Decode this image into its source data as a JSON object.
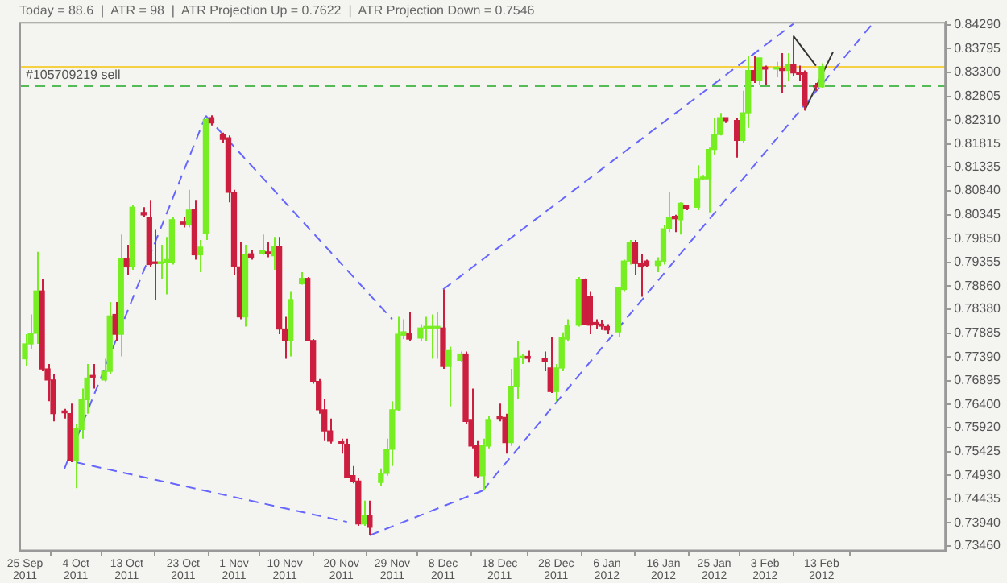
{
  "chart_data": {
    "type": "candlestick",
    "title": "Today = 88.6  |  ATR = 98  |  ATR Projection Up = 0.7622  |  ATR Projection Down = 0.7546",
    "x": [
      "2011-09-25",
      "2011-09-26",
      "2011-09-27",
      "2011-09-28",
      "2011-09-29",
      "2011-09-30",
      "2011-10-02",
      "2011-10-03",
      "2011-10-04",
      "2011-10-05",
      "2011-10-06",
      "2011-10-07",
      "2011-10-09",
      "2011-10-10",
      "2011-10-11",
      "2011-10-12",
      "2011-10-13",
      "2011-10-14",
      "2011-10-16",
      "2011-10-17",
      "2011-10-18",
      "2011-10-19",
      "2011-10-20",
      "2011-10-21",
      "2011-10-23",
      "2011-10-24",
      "2011-10-25",
      "2011-10-26",
      "2011-10-27",
      "2011-10-28",
      "2011-10-30",
      "2011-10-31",
      "2011-11-01",
      "2011-11-02",
      "2011-11-03",
      "2011-11-04",
      "2011-11-06",
      "2011-11-07",
      "2011-11-08",
      "2011-11-09",
      "2011-11-10",
      "2011-11-11",
      "2011-11-13",
      "2011-11-14",
      "2011-11-15",
      "2011-11-16",
      "2011-11-17",
      "2011-11-18",
      "2011-11-20",
      "2011-11-21",
      "2011-11-22",
      "2011-11-23",
      "2011-11-24",
      "2011-11-25",
      "2011-11-27",
      "2011-11-28",
      "2011-11-29",
      "2011-11-30",
      "2011-12-01",
      "2011-12-02",
      "2011-12-04",
      "2011-12-05",
      "2011-12-06",
      "2011-12-07",
      "2011-12-08",
      "2011-12-09",
      "2011-12-11",
      "2011-12-12",
      "2011-12-13",
      "2011-12-14",
      "2011-12-15",
      "2011-12-16",
      "2011-12-18",
      "2011-12-19",
      "2011-12-20",
      "2011-12-21",
      "2011-12-22",
      "2011-12-23",
      "2011-12-26",
      "2011-12-27",
      "2011-12-28",
      "2011-12-29",
      "2011-12-30",
      "2012-01-01",
      "2012-01-02",
      "2012-01-03",
      "2012-01-04",
      "2012-01-05",
      "2012-01-06",
      "2012-01-08",
      "2012-01-09",
      "2012-01-10",
      "2012-01-11",
      "2012-01-12",
      "2012-01-13",
      "2012-01-15",
      "2012-01-16",
      "2012-01-17",
      "2012-01-18",
      "2012-01-19",
      "2012-01-20",
      "2012-01-22",
      "2012-01-23",
      "2012-01-24",
      "2012-01-25",
      "2012-01-26",
      "2012-01-27",
      "2012-01-29",
      "2012-01-30",
      "2012-01-31",
      "2012-02-01",
      "2012-02-02",
      "2012-02-03",
      "2012-02-05",
      "2012-02-06",
      "2012-02-07",
      "2012-02-08",
      "2012-02-09",
      "2012-02-10",
      "2012-02-12",
      "2012-02-13"
    ],
    "ohlc": [
      [
        0.7735,
        0.7786,
        0.7719,
        0.7766
      ],
      [
        0.7766,
        0.7827,
        0.7755,
        0.7788
      ],
      [
        0.7788,
        0.7957,
        0.7766,
        0.7876
      ],
      [
        0.7876,
        0.79,
        0.7709,
        0.7714
      ],
      [
        0.7714,
        0.7724,
        0.7647,
        0.7691
      ],
      [
        0.7691,
        0.7704,
        0.7605,
        0.7621
      ],
      [
        0.7626,
        0.7631,
        0.7611,
        0.7623
      ],
      [
        0.7621,
        0.7642,
        0.752,
        0.7523
      ],
      [
        0.7523,
        0.76,
        0.7466,
        0.759
      ],
      [
        0.7588,
        0.7673,
        0.7569,
        0.765
      ],
      [
        0.765,
        0.7724,
        0.7621,
        0.7695
      ],
      [
        0.7698,
        0.7724,
        0.7673,
        0.7697
      ],
      [
        0.7691,
        0.7735,
        0.7688,
        0.7709
      ],
      [
        0.7709,
        0.7853,
        0.7704,
        0.7824
      ],
      [
        0.7827,
        0.7853,
        0.7771,
        0.7786
      ],
      [
        0.7786,
        0.7993,
        0.774,
        0.7943
      ],
      [
        0.7943,
        0.7972,
        0.791,
        0.7926
      ],
      [
        0.7926,
        0.8055,
        0.792,
        0.805
      ],
      [
        0.8039,
        0.805,
        0.8029,
        0.8034
      ],
      [
        0.8029,
        0.8065,
        0.7926,
        0.7931
      ],
      [
        0.7936,
        0.8003,
        0.7858,
        0.7933
      ],
      [
        0.7933,
        0.7972,
        0.79,
        0.7936
      ],
      [
        0.7936,
        0.7988,
        0.7869,
        0.7941
      ],
      [
        0.7936,
        0.8029,
        0.7931,
        0.8024
      ],
      [
        0.8019,
        0.8029,
        0.8008,
        0.8015
      ],
      [
        0.8013,
        0.8086,
        0.8008,
        0.8044
      ],
      [
        0.8046,
        0.8065,
        0.7941,
        0.7951
      ],
      [
        0.7951,
        0.7982,
        0.7915,
        0.7967
      ],
      [
        0.7995,
        0.8236,
        0.7982,
        0.8232
      ],
      [
        0.8236,
        0.8241,
        0.822,
        0.8225
      ],
      [
        0.8201,
        0.8205,
        0.8184,
        0.8191
      ],
      [
        0.8194,
        0.8199,
        0.806,
        0.8081
      ],
      [
        0.8081,
        0.8086,
        0.791,
        0.7926
      ],
      [
        0.7926,
        0.7977,
        0.7817,
        0.7822
      ],
      [
        0.7822,
        0.7972,
        0.7802,
        0.7951
      ],
      [
        0.7953,
        0.7962,
        0.7941,
        0.7946
      ],
      [
        0.7953,
        0.7993,
        0.7951,
        0.7959
      ],
      [
        0.7957,
        0.7977,
        0.7946,
        0.7953
      ],
      [
        0.7949,
        0.7988,
        0.792,
        0.7969
      ],
      [
        0.7969,
        0.7988,
        0.7786,
        0.7797
      ],
      [
        0.7797,
        0.7822,
        0.7735,
        0.7773
      ],
      [
        0.7773,
        0.7874,
        0.774,
        0.7858
      ],
      [
        0.7891,
        0.7915,
        0.7889,
        0.7902
      ],
      [
        0.7902,
        0.7905,
        0.7771,
        0.7773
      ],
      [
        0.7773,
        0.7776,
        0.7683,
        0.7688
      ],
      [
        0.7688,
        0.7693,
        0.7621,
        0.7629
      ],
      [
        0.7629,
        0.7652,
        0.7564,
        0.7585
      ],
      [
        0.7585,
        0.7611,
        0.7559,
        0.7564
      ],
      [
        0.7561,
        0.7569,
        0.7538,
        0.7559
      ],
      [
        0.7556,
        0.7569,
        0.7487,
        0.7489
      ],
      [
        0.7492,
        0.7512,
        0.7476,
        0.7481
      ],
      [
        0.7481,
        0.7487,
        0.7388,
        0.7392
      ],
      [
        0.7392,
        0.744,
        0.7388,
        0.7409
      ],
      [
        0.7409,
        0.744,
        0.7368,
        0.7385
      ],
      [
        0.7478,
        0.7507,
        0.7471,
        0.7497
      ],
      [
        0.7497,
        0.7569,
        0.7492,
        0.7547
      ],
      [
        0.7547,
        0.7647,
        0.7512,
        0.7629
      ],
      [
        0.7629,
        0.7822,
        0.7626,
        0.7786
      ],
      [
        0.7784,
        0.7817,
        0.7776,
        0.7791
      ],
      [
        0.7788,
        0.7833,
        0.7771,
        0.7776
      ],
      [
        0.7778,
        0.7807,
        0.7771,
        0.7799
      ],
      [
        0.7799,
        0.7822,
        0.7771,
        0.7799
      ],
      [
        0.7799,
        0.7827,
        0.7735,
        0.7799
      ],
      [
        0.7799,
        0.7832,
        0.7735,
        0.78
      ],
      [
        0.7799,
        0.7879,
        0.7714,
        0.7719
      ],
      [
        0.7719,
        0.776,
        0.7636,
        0.7752
      ],
      [
        0.7732,
        0.775,
        0.7729,
        0.7745
      ],
      [
        0.7745,
        0.775,
        0.76,
        0.7605
      ],
      [
        0.7609,
        0.7673,
        0.7549,
        0.7554
      ],
      [
        0.7554,
        0.7564,
        0.7487,
        0.7492
      ],
      [
        0.7492,
        0.7569,
        0.7461,
        0.7554
      ],
      [
        0.7554,
        0.7616,
        0.7549,
        0.7609
      ],
      [
        0.7616,
        0.7642,
        0.7605,
        0.7611
      ],
      [
        0.7613,
        0.7621,
        0.7538,
        0.7561
      ],
      [
        0.7561,
        0.7714,
        0.7554,
        0.7678
      ],
      [
        0.7678,
        0.7771,
        0.7652,
        0.7737
      ],
      [
        0.7737,
        0.7745,
        0.7724,
        0.774
      ],
      [
        0.774,
        0.7752,
        0.7727,
        0.7736
      ],
      [
        0.7735,
        0.775,
        0.7709,
        0.7729
      ],
      [
        0.7716,
        0.778,
        0.7664,
        0.7667
      ],
      [
        0.7667,
        0.7724,
        0.7647,
        0.7716
      ],
      [
        0.7716,
        0.779,
        0.7709,
        0.778
      ],
      [
        0.7776,
        0.7817,
        0.7771,
        0.7805
      ],
      [
        0.7805,
        0.7905,
        0.7802,
        0.79
      ],
      [
        0.79,
        0.7902,
        0.7805,
        0.7807
      ],
      [
        0.7864,
        0.7874,
        0.7786,
        0.7805
      ],
      [
        0.781,
        0.7817,
        0.7797,
        0.7807
      ],
      [
        0.7807,
        0.7815,
        0.7795,
        0.7803
      ],
      [
        0.7802,
        0.7807,
        0.7786,
        0.7795
      ],
      [
        0.7791,
        0.7884,
        0.7781,
        0.7882
      ],
      [
        0.7879,
        0.7941,
        0.7874,
        0.7938
      ],
      [
        0.7938,
        0.7982,
        0.7931,
        0.7977
      ],
      [
        0.7977,
        0.7982,
        0.791,
        0.7933
      ],
      [
        0.7933,
        0.7952,
        0.7864,
        0.7926
      ],
      [
        0.7938,
        0.7941,
        0.7926,
        0.7929
      ],
      [
        0.7929,
        0.7946,
        0.7915,
        0.7938
      ],
      [
        0.7938,
        0.8013,
        0.7931,
        0.8005
      ],
      [
        0.8005,
        0.8081,
        0.7998,
        0.8029
      ],
      [
        0.8031,
        0.8034,
        0.7998,
        0.8026
      ],
      [
        0.8024,
        0.806,
        0.7993,
        0.8058
      ],
      [
        0.8054,
        0.8055,
        0.8044,
        0.8047
      ],
      [
        0.805,
        0.8137,
        0.8044,
        0.8109
      ],
      [
        0.8109,
        0.8117,
        0.8106,
        0.811
      ],
      [
        0.8109,
        0.8174,
        0.8039,
        0.817
      ],
      [
        0.817,
        0.8236,
        0.8158,
        0.8201
      ],
      [
        0.8201,
        0.8246,
        0.8199,
        0.8236
      ],
      [
        0.8236,
        0.8236,
        0.8225,
        0.823
      ],
      [
        0.823,
        0.8236,
        0.8153,
        0.8189
      ],
      [
        0.8189,
        0.8292,
        0.8184,
        0.8246
      ],
      [
        0.8246,
        0.8365,
        0.8215,
        0.8334
      ],
      [
        0.8334,
        0.8365,
        0.8308,
        0.8313
      ],
      [
        0.8313,
        0.836,
        0.8303,
        0.836
      ],
      [
        0.8341,
        0.8344,
        0.8303,
        0.8337
      ],
      [
        0.8337,
        0.8352,
        0.832,
        0.8339
      ],
      [
        0.8339,
        0.837,
        0.8287,
        0.8334
      ],
      [
        0.8334,
        0.837,
        0.8313,
        0.8347
      ],
      [
        0.8347,
        0.8406,
        0.8323,
        0.8329
      ],
      [
        0.8329,
        0.8344,
        0.8313,
        0.8326
      ],
      [
        0.8329,
        0.8334,
        0.8251,
        0.8261
      ],
      [
        0.8303,
        0.8308,
        0.8292,
        0.83
      ],
      [
        0.83,
        0.8349,
        0.8298,
        0.8342
      ]
    ],
    "colors": [
      "#77ee22",
      "#77ee22",
      "#77ee22",
      "#cc1f3f",
      "#cc1f3f",
      "#cc1f3f",
      "#cc1f3f",
      "#cc1f3f",
      "#77ee22",
      "#77ee22",
      "#77ee22",
      "#cc1f3f",
      "#77ee22",
      "#77ee22",
      "#cc1f3f",
      "#77ee22",
      "#cc1f3f",
      "#77ee22",
      "#cc1f3f",
      "#cc1f3f",
      "#cc1f3f",
      "#77ee22",
      "#77ee22",
      "#77ee22",
      "#cc1f3f",
      "#77ee22",
      "#cc1f3f",
      "#77ee22",
      "#77ee22",
      "#cc1f3f",
      "#cc1f3f",
      "#cc1f3f",
      "#cc1f3f",
      "#cc1f3f",
      "#77ee22",
      "#cc1f3f",
      "#77ee22",
      "#cc1f3f",
      "#77ee22",
      "#cc1f3f",
      "#cc1f3f",
      "#77ee22",
      "#77ee22",
      "#cc1f3f",
      "#cc1f3f",
      "#cc1f3f",
      "#cc1f3f",
      "#cc1f3f",
      "#cc1f3f",
      "#cc1f3f",
      "#cc1f3f",
      "#cc1f3f",
      "#77ee22",
      "#cc1f3f",
      "#77ee22",
      "#77ee22",
      "#77ee22",
      "#77ee22",
      "#77ee22",
      "#cc1f3f",
      "#77ee22",
      "#77ee22",
      "#77ee22",
      "#77ee22",
      "#cc1f3f",
      "#77ee22",
      "#77ee22",
      "#cc1f3f",
      "#cc1f3f",
      "#cc1f3f",
      "#77ee22",
      "#77ee22",
      "#cc1f3f",
      "#cc1f3f",
      "#77ee22",
      "#77ee22",
      "#77ee22",
      "#cc1f3f",
      "#cc1f3f",
      "#cc1f3f",
      "#77ee22",
      "#77ee22",
      "#77ee22",
      "#77ee22",
      "#cc1f3f",
      "#cc1f3f",
      "#cc1f3f",
      "#cc1f3f",
      "#cc1f3f",
      "#77ee22",
      "#77ee22",
      "#77ee22",
      "#cc1f3f",
      "#cc1f3f",
      "#cc1f3f",
      "#77ee22",
      "#77ee22",
      "#77ee22",
      "#cc1f3f",
      "#77ee22",
      "#cc1f3f",
      "#77ee22",
      "#77ee22",
      "#77ee22",
      "#77ee22",
      "#77ee22",
      "#cc1f3f",
      "#cc1f3f",
      "#77ee22",
      "#77ee22",
      "#cc1f3f",
      "#77ee22",
      "#cc1f3f",
      "#77ee22",
      "#cc1f3f",
      "#77ee22",
      "#cc1f3f",
      "#cc1f3f",
      "#cc1f3f",
      "#cc1f3f",
      "#77ee22"
    ],
    "series": [
      {
        "type": "line",
        "color": "#6666ff",
        "line_style": "dashed",
        "x": [
          "2011-10-02",
          "2011-10-27"
        ],
        "values": [
          0.7507,
          0.824
        ]
      },
      {
        "type": "line",
        "color": "#6666ff",
        "line_style": "dashed",
        "x": [
          "2011-10-04",
          "2011-11-21"
        ],
        "values": [
          0.752,
          0.7396
        ]
      },
      {
        "type": "line",
        "color": "#6666ff",
        "line_style": "dashed",
        "x": [
          "2011-10-27",
          "2011-11-29"
        ],
        "values": [
          0.824,
          0.7817
        ]
      },
      {
        "type": "line",
        "color": "#6666ff",
        "line_style": "dashed",
        "x": [
          "2011-11-25",
          "2011-12-15"
        ],
        "values": [
          0.7368,
          0.7461
        ]
      },
      {
        "type": "line",
        "color": "#6666ff",
        "line_style": "dashed",
        "x": [
          "2011-12-15",
          "2012-02-22"
        ],
        "values": [
          0.7461,
          0.8431
        ]
      },
      {
        "type": "line",
        "color": "#6666ff",
        "line_style": "dashed",
        "x": [
          "2011-12-08",
          "2012-02-08"
        ],
        "values": [
          0.7879,
          0.8431
        ]
      },
      {
        "type": "line",
        "color": "#333333",
        "line_style": "solid",
        "x": [
          "2012-02-08",
          "2012-02-12"
        ],
        "values": [
          0.8406,
          0.8344
        ]
      },
      {
        "type": "line",
        "color": "#333333",
        "line_style": "solid",
        "x": [
          "2012-02-10",
          "2012-02-15"
        ],
        "values": [
          0.8251,
          0.8372
        ]
      }
    ],
    "ref_lines": [
      {
        "axis": "y",
        "value": 0.8344,
        "color": "#f5d040",
        "line_style": "solid"
      },
      {
        "axis": "y",
        "value": 0.8304,
        "label": "#105709219 sell",
        "color": "#55bb55",
        "line_style": "dashed"
      }
    ],
    "xlim": [
      "2011-09-24",
      "2012-03-06"
    ],
    "xticks": [
      {
        "value": "2011-09-25",
        "label": "25 Sep 2011"
      },
      {
        "value": "2011-10-04",
        "label": "4 Oct 2011"
      },
      {
        "value": "2011-10-13",
        "label": "13 Oct 2011"
      },
      {
        "value": "2011-10-23",
        "label": "23 Oct 2011"
      },
      {
        "value": "2011-11-01",
        "label": "1 Nov 2011"
      },
      {
        "value": "2011-11-10",
        "label": "10 Nov 2011"
      },
      {
        "value": "2011-11-20",
        "label": "20 Nov 2011"
      },
      {
        "value": "2011-11-29",
        "label": "29 Nov 2011"
      },
      {
        "value": "2011-12-08",
        "label": "8 Dec 2011"
      },
      {
        "value": "2011-12-18",
        "label": "18 Dec 2011"
      },
      {
        "value": "2011-12-28",
        "label": "28 Dec 2011"
      },
      {
        "value": "2012-01-06",
        "label": "6 Jan 2012"
      },
      {
        "value": "2012-01-16",
        "label": "16 Jan 2012"
      },
      {
        "value": "2012-01-25",
        "label": "25 Jan 2012"
      },
      {
        "value": "2012-02-03",
        "label": "3 Feb 2012"
      },
      {
        "value": "2012-02-13",
        "label": "13 Feb 2012"
      }
    ],
    "ylim": [
      0.7335,
      0.8435
    ],
    "yticks": [
      {
        "value": 0.7346,
        "label": "0.73460"
      },
      {
        "value": 0.7394,
        "label": "0.73940"
      },
      {
        "value": 0.74435,
        "label": "0.74435"
      },
      {
        "value": 0.7493,
        "label": "0.74930"
      },
      {
        "value": 0.75425,
        "label": "0.75425"
      },
      {
        "value": 0.7592,
        "label": "0.75920"
      },
      {
        "value": 0.764,
        "label": "0.76400"
      },
      {
        "value": 0.76895,
        "label": "0.76895"
      },
      {
        "value": 0.7739,
        "label": "0.77390"
      },
      {
        "value": 0.77885,
        "label": "0.77885"
      },
      {
        "value": 0.7838,
        "label": "0.78380"
      },
      {
        "value": 0.7886,
        "label": "0.78860"
      },
      {
        "value": 0.79355,
        "label": "0.79355"
      },
      {
        "value": 0.7985,
        "label": "0.79850"
      },
      {
        "value": 0.80345,
        "label": "0.80345"
      },
      {
        "value": 0.8084,
        "label": "0.80840"
      },
      {
        "value": 0.81335,
        "label": "0.81335"
      },
      {
        "value": 0.81815,
        "label": "0.81815"
      },
      {
        "value": 0.8231,
        "label": "0.82310"
      },
      {
        "value": 0.82805,
        "label": "0.82805"
      },
      {
        "value": 0.833,
        "label": "0.83300"
      },
      {
        "value": 0.83795,
        "label": "0.83795"
      },
      {
        "value": 0.8429,
        "label": "0.84290"
      }
    ]
  }
}
